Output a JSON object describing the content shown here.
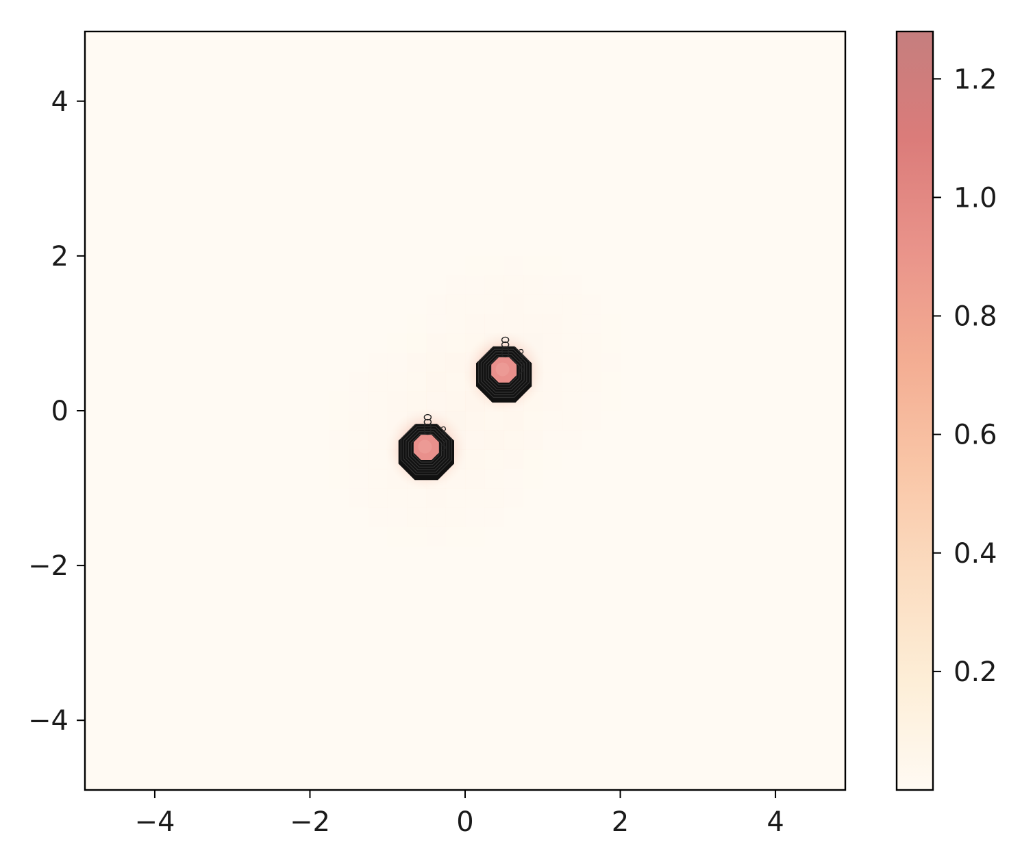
{
  "chart_data": {
    "type": "heatmap",
    "title": "",
    "xlabel": "",
    "ylabel": "",
    "xlim": [
      -4.9,
      4.9
    ],
    "ylim": [
      -4.9,
      4.9
    ],
    "grid": false,
    "x_ticks": [
      {
        "value": -4,
        "label": "−4"
      },
      {
        "value": -2,
        "label": "−2"
      },
      {
        "value": 0,
        "label": "0"
      },
      {
        "value": 2,
        "label": "2"
      },
      {
        "value": 4,
        "label": "4"
      }
    ],
    "y_ticks": [
      {
        "value": 4,
        "label": "4"
      },
      {
        "value": 2,
        "label": "2"
      },
      {
        "value": 0,
        "label": "0"
      },
      {
        "value": -2,
        "label": "−2"
      },
      {
        "value": -4,
        "label": "−4"
      }
    ],
    "colorbar": {
      "range": [
        0.0,
        1.28
      ],
      "ticks": [
        {
          "value": 0.2,
          "label": "0.2"
        },
        {
          "value": 0.4,
          "label": "0.4"
        },
        {
          "value": 0.6,
          "label": "0.6"
        },
        {
          "value": 0.8,
          "label": "0.8"
        },
        {
          "value": 1.0,
          "label": "1.0"
        },
        {
          "value": 1.2,
          "label": "1.2"
        }
      ],
      "colors": [
        "#fffaf3",
        "#fdeed7",
        "#fbdcc0",
        "#f9c5a6",
        "#f3ac92",
        "#e9938a",
        "#db7c7a",
        "#c57e7e"
      ]
    },
    "background_color": "#fffaf3",
    "peaks": [
      {
        "x": 0.5,
        "y": 0.5,
        "value": 1.28
      },
      {
        "x": -0.5,
        "y": -0.5,
        "value": 1.28
      }
    ],
    "contour_color": "#111111"
  }
}
